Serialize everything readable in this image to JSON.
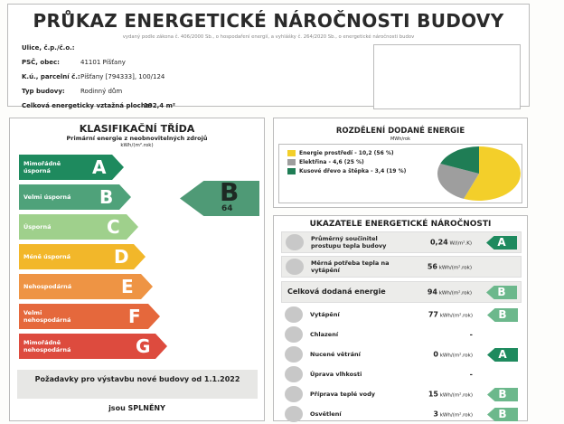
{
  "header": {
    "title": "PRŮKAZ ENERGETICKÉ NÁROČNOSTI BUDOVY",
    "subtitle": "vydaný podle zákona č. 406/2000 Sb., o hospodaření energií, a vyhlášky č. 264/2020 Sb., o energetické náročnosti budov"
  },
  "info": [
    {
      "label": "Ulice, č.p./č.o.:",
      "value": ""
    },
    {
      "label": "PSČ, obec:",
      "value": "41101 Píšťany"
    },
    {
      "label": "K.ú., parcelní č.:",
      "value": "Píšťany [794333], 100/124"
    },
    {
      "label": "Typ budovy:",
      "value": "Rodinný dům"
    },
    {
      "label": "Celková energeticky vztažná plocha:",
      "value": "192,4 m²"
    }
  ],
  "classification": {
    "title": "KLASIFIKAČNÍ TŘÍDA",
    "subtitle": "Primární energie z neobnovitelných zdrojů",
    "unit": "kWh/(m².rok)",
    "classes": [
      {
        "letter": "A",
        "label": "Mimořádně úsporná",
        "color": "#1e8a5e"
      },
      {
        "letter": "B",
        "label": "Velmi úsporná",
        "color": "#4fa27a"
      },
      {
        "letter": "C",
        "label": "Úsporná",
        "color": "#9fd08c"
      },
      {
        "letter": "D",
        "label": "Méně úsporná",
        "color": "#f2b72a"
      },
      {
        "letter": "E",
        "label": "Nehospodárná",
        "color": "#ee9444"
      },
      {
        "letter": "F",
        "label": "Velmi nehospodárná",
        "color": "#e5683c"
      },
      {
        "letter": "G",
        "label": "Mimořádně nehospodárná",
        "color": "#dd4b3e"
      }
    ],
    "result": {
      "letter": "B",
      "value": "64",
      "color": "#4f9a76"
    },
    "requirement": "Požadavky pro výstavbu nové budovy od 1.1.2022",
    "requirement_status": "jsou SPLNĚNY"
  },
  "distribution": {
    "title": "ROZDĚLENÍ DODANÉ ENERGIE",
    "unit": "MWh/rok",
    "items": [
      {
        "label": "Energie prostředí - 10,2 (56 %)",
        "value": 10.2,
        "percent": 56,
        "color": "#f3cf2a"
      },
      {
        "label": "Elektřina - 4,6 (25 %)",
        "value": 4.6,
        "percent": 25,
        "color": "#9e9e9e"
      },
      {
        "label": "Kusové dřevo a štěpka - 3,4 (19 %)",
        "value": 3.4,
        "percent": 19,
        "color": "#1f7d55"
      }
    ]
  },
  "indicators": {
    "title": "UKAZATELE ENERGETICKÉ NÁROČNOSTI",
    "rows": [
      {
        "icon": "house-icon",
        "label": "Průměrný součinitel prostupu tepla budovy",
        "value": "0,24",
        "unit": "W/(m².K)",
        "class": "A"
      },
      {
        "icon": "radiator-icon",
        "label": "Měrná potřeba tepla na vytápění",
        "value": "56",
        "unit": "kWh/(m².rok)",
        "class": ""
      },
      {
        "icon": "",
        "label": "Celková dodaná energie",
        "value": "94",
        "unit": "kWh/(m².rok)",
        "class": "B"
      },
      {
        "icon": "thermometer-hot-icon",
        "label": "Vytápění",
        "value": "77",
        "unit": "kWh/(m².rok)",
        "class": "B"
      },
      {
        "icon": "thermometer-cold-icon",
        "label": "Chlazení",
        "value": "-",
        "unit": "",
        "class": ""
      },
      {
        "icon": "fan-icon",
        "label": "Nucené větrání",
        "value": "0",
        "unit": "kWh/(m².rok)",
        "class": "A"
      },
      {
        "icon": "droplet-icon",
        "label": "Úprava vlhkosti",
        "value": "-",
        "unit": "",
        "class": ""
      },
      {
        "icon": "faucet-icon",
        "label": "Příprava teplé vody",
        "value": "15",
        "unit": "kWh/(m².rok)",
        "class": "B"
      },
      {
        "icon": "lightbulb-icon",
        "label": "Osvětlení",
        "value": "3",
        "unit": "kWh/(m².rok)",
        "class": "B"
      }
    ]
  },
  "class_colors": {
    "A": "#1e8a5e",
    "B": "#6cb88c"
  }
}
